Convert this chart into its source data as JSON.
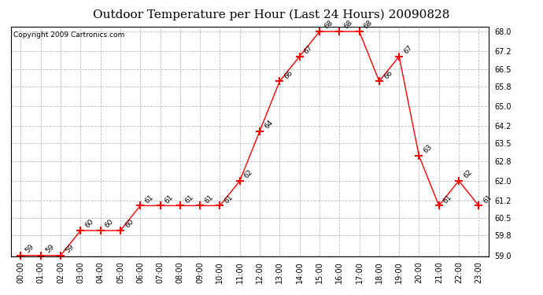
{
  "title": "Outdoor Temperature per Hour (Last 24 Hours) 20090828",
  "copyright": "Copyright 2009 Cartronics.com",
  "hours": [
    "00:00",
    "01:00",
    "02:00",
    "03:00",
    "04:00",
    "05:00",
    "06:00",
    "07:00",
    "08:00",
    "09:00",
    "10:00",
    "11:00",
    "12:00",
    "13:00",
    "14:00",
    "15:00",
    "16:00",
    "17:00",
    "18:00",
    "19:00",
    "20:00",
    "21:00",
    "22:00",
    "23:00"
  ],
  "temperatures": [
    59,
    59,
    59,
    60,
    60,
    60,
    61,
    61,
    61,
    61,
    61,
    62,
    64,
    66,
    67,
    68,
    68,
    68,
    66,
    67,
    63,
    61,
    62,
    61
  ],
  "ylim_min": 59.0,
  "ylim_max": 68.0,
  "yticks": [
    59.0,
    59.8,
    60.5,
    61.2,
    62.0,
    62.8,
    63.5,
    64.2,
    65.0,
    65.8,
    66.5,
    67.2,
    68.0
  ],
  "line_color": "red",
  "marker": "+",
  "marker_size": 7,
  "marker_color": "red",
  "grid_color": "#bbbbbb",
  "background_color": "white",
  "title_fontsize": 11,
  "copyright_fontsize": 6.5,
  "label_fontsize": 6.5,
  "tick_fontsize": 7
}
